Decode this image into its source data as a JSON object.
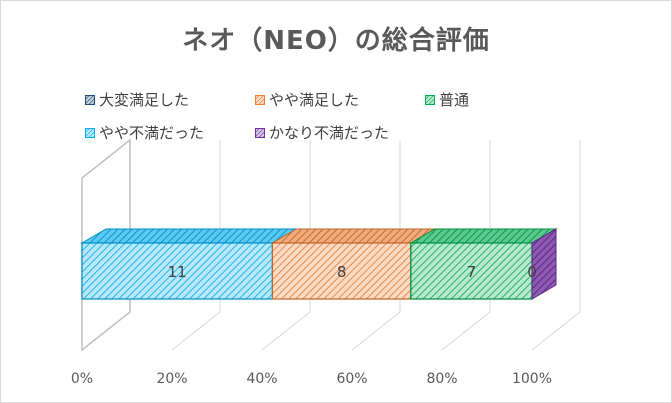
{
  "chart_data": {
    "type": "bar",
    "orientation": "horizontal",
    "stacked": "100%",
    "three_d": true,
    "title": "ネオ（NEO）の総合評価",
    "categories": [
      ""
    ],
    "series": [
      {
        "name": "やや不満だった",
        "values": [
          11
        ],
        "color": "#00b0f0",
        "label": "11"
      },
      {
        "name": "やや満足した",
        "values": [
          8
        ],
        "color": "#ed7d31",
        "label": "8"
      },
      {
        "name": "普通",
        "values": [
          7
        ],
        "color": "#00b050",
        "label": "7"
      },
      {
        "name": "かなり不満だった",
        "values": [
          0
        ],
        "color": "#7030a0",
        "label": "0"
      }
    ],
    "legend": {
      "placement": "top",
      "entries": [
        {
          "name": "大変満足した",
          "color": "#1f4e79"
        },
        {
          "name": "やや満足した",
          "color": "#ed7d31"
        },
        {
          "name": "普通",
          "color": "#00b050"
        },
        {
          "name": "やや不満だった",
          "color": "#00b0f0"
        },
        {
          "name": "かなり不満だった",
          "color": "#7030a0"
        }
      ]
    },
    "xlim": [
      0,
      100
    ],
    "x_ticks": [
      "0%",
      "20%",
      "40%",
      "60%",
      "80%",
      "100%"
    ],
    "grid": true
  }
}
